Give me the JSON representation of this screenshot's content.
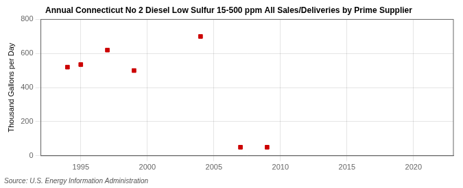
{
  "chart_data": {
    "type": "scatter",
    "title": "Annual Connecticut No 2 Diesel Low Sulfur 15-500 ppm All Sales/Deliveries by Prime Supplier",
    "ylabel": "Thousand Gallons per Day",
    "annotations": [
      "Source: U.S. Energy Information Administration"
    ],
    "x": [
      1994,
      1995,
      1997,
      1999,
      2004,
      2007,
      2009
    ],
    "values": [
      520,
      535,
      620,
      500,
      700,
      50,
      50
    ],
    "color": "#cc0000",
    "marker": "square",
    "xlim": [
      1992,
      2023
    ],
    "ylim": [
      0,
      800
    ],
    "xticks": [
      1995,
      2000,
      2005,
      2010,
      2015,
      2020
    ],
    "yticks": [
      0,
      200,
      400,
      600,
      800
    ],
    "grid": true
  }
}
